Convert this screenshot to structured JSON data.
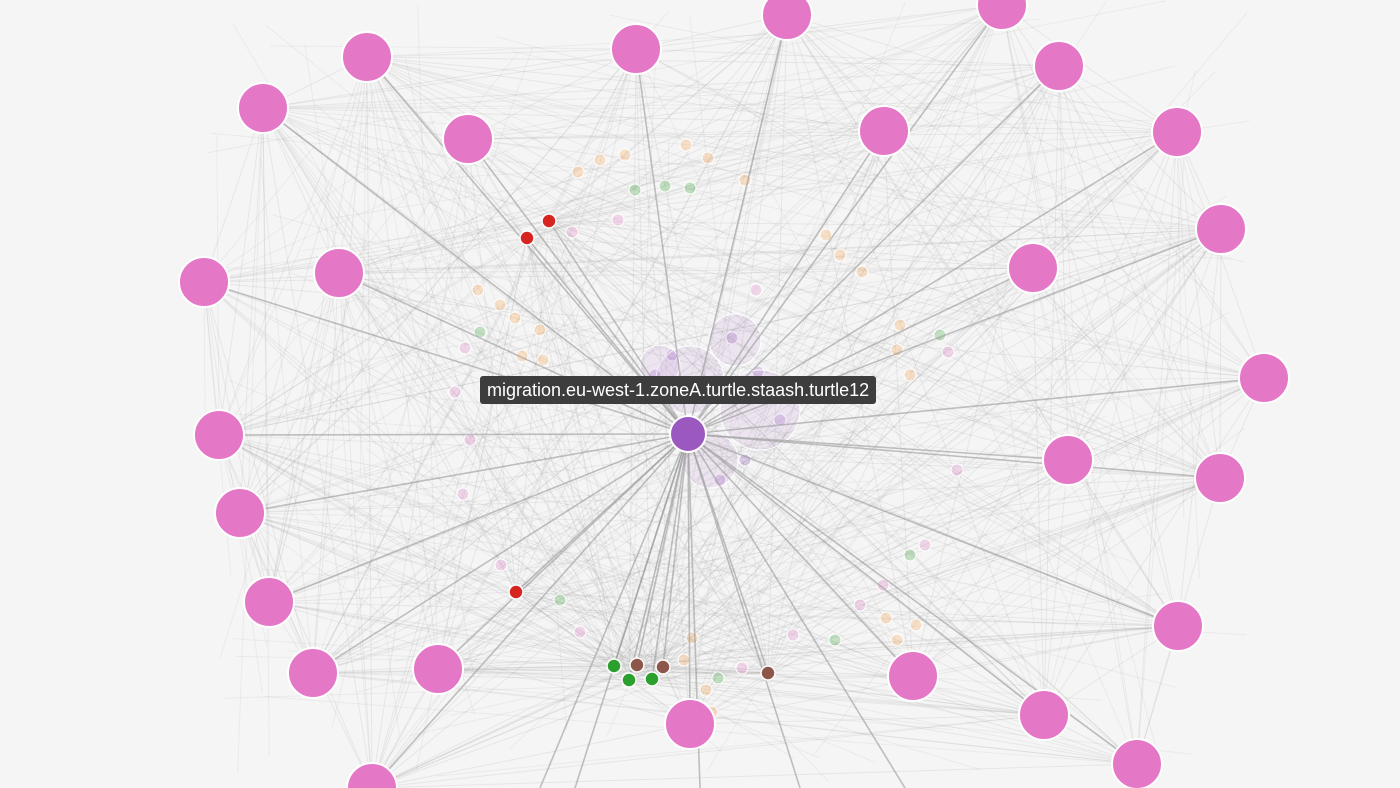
{
  "tooltip": {
    "text": "migration.eu-west-1.zoneA.turtle.staash.turtle12"
  },
  "colors": {
    "background": "#f5f5f5",
    "edge": "#999999",
    "focus_node": "#9b59c0",
    "ring_node": "#e577c7",
    "alert_node": "#d62420",
    "ok_node": "#2ca02c",
    "brown_node": "#8c564b",
    "orange_node": "#ff9f40",
    "node_stroke": "#ffffff"
  },
  "graph": {
    "focus_node": {
      "name": "focus-node",
      "color": "focus_node"
    },
    "node_groups": [
      {
        "name": "ring-node",
        "color": "ring_node",
        "count": 34
      },
      {
        "name": "alert-node",
        "color": "alert_node",
        "count": 3
      },
      {
        "name": "ok-node",
        "color": "ok_node",
        "count": 3
      },
      {
        "name": "brown-node",
        "color": "brown_node",
        "count": 3
      }
    ]
  }
}
